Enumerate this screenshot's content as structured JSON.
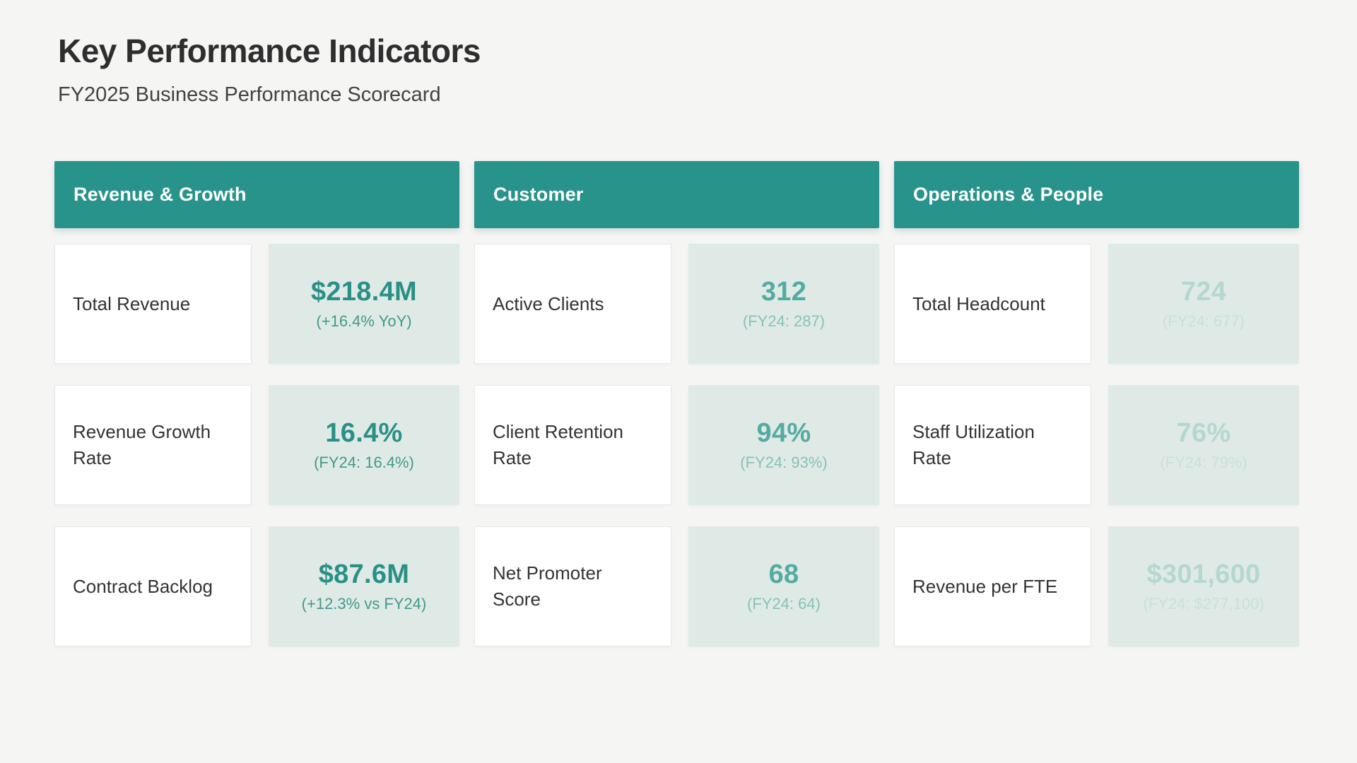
{
  "page": {
    "title": "Key Performance Indicators",
    "subtitle": "FY2025 Business Performance Scorecard"
  },
  "theme": {
    "page_bg": "#f5f5f4",
    "header_bg": "#28938a",
    "header_text": "#ffffff",
    "value_card_bg": "#dfeae7",
    "label_text": "#333333",
    "column_value_colors": [
      "#2a9085",
      "#54aba1",
      "#b4d7d0"
    ],
    "column_comparison_colors": [
      "#43998d",
      "#86c2b9",
      "#c8e0da"
    ]
  },
  "chart_data": {
    "type": "table",
    "title": "Key Performance Indicators",
    "subtitle": "FY2025 Business Performance Scorecard",
    "groups": [
      {
        "category": "Revenue & Growth",
        "metrics": [
          {
            "label": "Total Revenue",
            "value": "$218.4M",
            "comparison": "(+16.4% YoY)"
          },
          {
            "label": "Revenue Growth Rate",
            "value": "16.4%",
            "comparison": "(FY24: 16.4%)"
          },
          {
            "label": "Contract Backlog",
            "value": "$87.6M",
            "comparison": "(+12.3% vs FY24)"
          }
        ]
      },
      {
        "category": "Customer",
        "metrics": [
          {
            "label": "Active Clients",
            "value": "312",
            "comparison": "(FY24: 287)"
          },
          {
            "label": "Client Retention Rate",
            "value": "94%",
            "comparison": "(FY24: 93%)"
          },
          {
            "label": "Net Promoter Score",
            "value": "68",
            "comparison": "(FY24: 64)"
          }
        ]
      },
      {
        "category": "Operations & People",
        "metrics": [
          {
            "label": "Total Headcount",
            "value": "724",
            "comparison": "(FY24: 677)"
          },
          {
            "label": "Staff Utilization Rate",
            "value": "76%",
            "comparison": "(FY24: 79%)"
          },
          {
            "label": "Revenue per FTE",
            "value": "$301,600",
            "comparison": "(FY24: $277,100)"
          }
        ]
      }
    ]
  }
}
